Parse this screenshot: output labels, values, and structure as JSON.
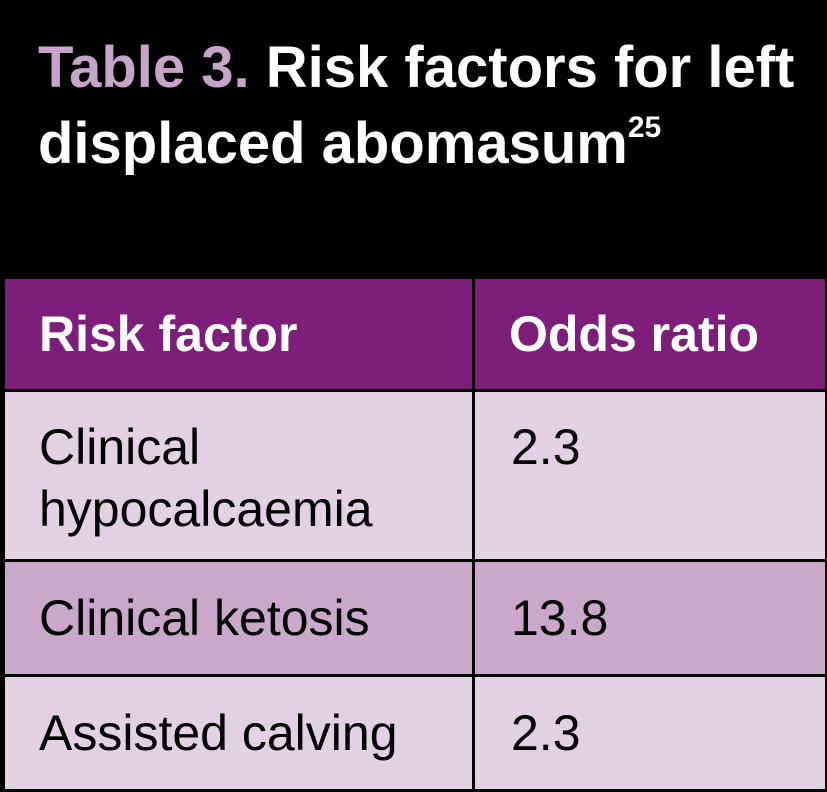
{
  "title": {
    "label": "Table 3.",
    "text": "Risk factors for left displaced abomasum",
    "superscript": "25"
  },
  "table": {
    "headers": [
      "Risk factor",
      "Odds ratio"
    ],
    "rows": [
      {
        "factor": "Clinical hypocalcaemia",
        "odds_ratio": "2.3"
      },
      {
        "factor": "Clinical ketosis",
        "odds_ratio": "13.8"
      },
      {
        "factor": "Assisted calving",
        "odds_ratio": "2.3"
      }
    ]
  },
  "colors": {
    "background": "#000000",
    "title_label": "#c7a5ca",
    "header_bg": "#7d1f7a",
    "row_light": "#e2d1e3",
    "row_dark": "#c9a8cc"
  }
}
